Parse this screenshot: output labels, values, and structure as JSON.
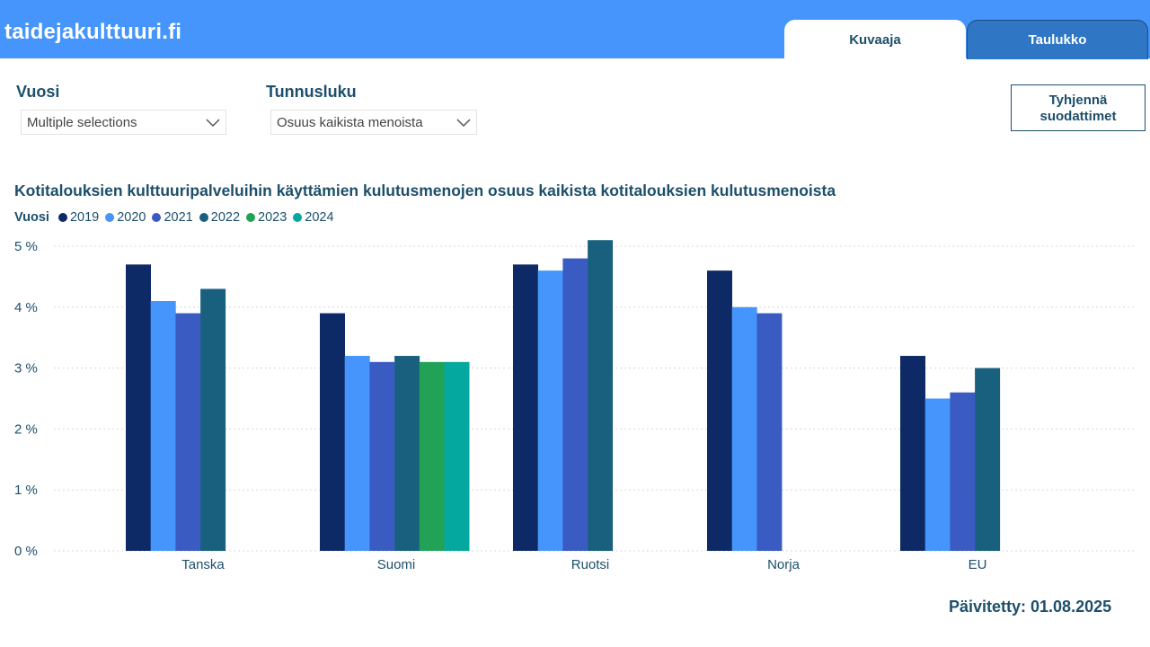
{
  "header": {
    "brand": "taidejakulttuuri.fi",
    "tabs": [
      {
        "label": "Kuvaaja",
        "active": true
      },
      {
        "label": "Taulukko",
        "active": false
      }
    ]
  },
  "filters": {
    "vuosi": {
      "label": "Vuosi",
      "value": "Multiple selections"
    },
    "tunnusluku": {
      "label": "Tunnusluku",
      "value": "Osuus kaikista menoista"
    }
  },
  "clear_button": {
    "line1": "Tyhjennä",
    "line2": "suodattimet"
  },
  "chart_data": {
    "type": "bar",
    "title": "Kotitalouksien kulttuuripalveluihin käyttämien kulutusmenojen osuus kaikista kotitalouksien kulutusmenoista",
    "legend_title": "Vuosi",
    "legend_position": "top-left",
    "categories": [
      "Tanska",
      "Suomi",
      "Ruotsi",
      "Norja",
      "EU"
    ],
    "y_ticks": [
      "0 %",
      "1 %",
      "2 %",
      "3 %",
      "4 %",
      "5 %"
    ],
    "ylim": [
      0,
      5.1
    ],
    "grid": true,
    "series": [
      {
        "name": "2019",
        "color": "#0e2a66",
        "values": [
          4.7,
          3.9,
          4.7,
          4.6,
          3.2
        ]
      },
      {
        "name": "2020",
        "color": "#4595fc",
        "values": [
          4.1,
          3.2,
          4.6,
          4.0,
          2.5
        ]
      },
      {
        "name": "2021",
        "color": "#3a5bc2",
        "values": [
          3.9,
          3.1,
          4.8,
          3.9,
          2.6
        ]
      },
      {
        "name": "2022",
        "color": "#19607f",
        "values": [
          4.3,
          3.2,
          5.1,
          null,
          3.0
        ]
      },
      {
        "name": "2023",
        "color": "#22a257",
        "values": [
          null,
          3.1,
          null,
          null,
          null
        ]
      },
      {
        "name": "2024",
        "color": "#05a89e",
        "values": [
          null,
          3.1,
          null,
          null,
          null
        ]
      }
    ]
  },
  "updated": "Päivitetty: 01.08.2025"
}
